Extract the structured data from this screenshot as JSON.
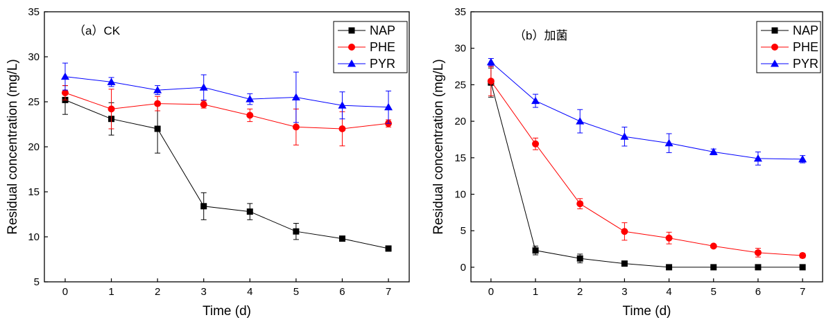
{
  "chart_data": [
    {
      "type": "line",
      "panel_label": "（a）CK",
      "xlabel": "Time (d)",
      "ylabel": "Residual concentration (mg/L)",
      "xlim": [
        -0.45,
        7.45
      ],
      "ylim": [
        5,
        35
      ],
      "x_ticks": [
        0,
        1,
        2,
        3,
        4,
        5,
        6,
        7
      ],
      "y_ticks": [
        5,
        10,
        15,
        20,
        25,
        30,
        35
      ],
      "x": [
        0,
        1,
        2,
        3,
        4,
        5,
        6,
        7
      ],
      "legend_position": "top-right",
      "series": [
        {
          "name": "NAP",
          "color": "#000000",
          "marker": "square",
          "values": [
            25.2,
            23.1,
            22.0,
            13.4,
            12.8,
            10.6,
            9.8,
            8.7
          ],
          "errors": [
            1.6,
            1.8,
            2.7,
            1.5,
            0.9,
            0.9,
            0.2,
            0.3
          ]
        },
        {
          "name": "PHE",
          "color": "#ff0000",
          "marker": "circle",
          "values": [
            26.0,
            24.2,
            24.8,
            24.7,
            23.5,
            22.2,
            22.0,
            22.6
          ],
          "errors": [
            0.8,
            2.2,
            0.8,
            0.4,
            0.7,
            2.0,
            1.9,
            0.4
          ]
        },
        {
          "name": "PYR",
          "color": "#0000ff",
          "marker": "triangle",
          "values": [
            27.8,
            27.2,
            26.3,
            26.6,
            25.3,
            25.5,
            24.6,
            24.4
          ],
          "errors": [
            1.5,
            0.5,
            0.5,
            1.4,
            0.6,
            2.8,
            1.5,
            1.8
          ]
        }
      ]
    },
    {
      "type": "line",
      "panel_label": "（b）加菌",
      "xlabel": "Time (d)",
      "ylabel": "Residual concentration (mg/L)",
      "xlim": [
        -0.45,
        7.45
      ],
      "ylim": [
        -2,
        35
      ],
      "x_ticks": [
        0,
        1,
        2,
        3,
        4,
        5,
        6,
        7
      ],
      "y_ticks": [
        0,
        5,
        10,
        15,
        20,
        25,
        30,
        35
      ],
      "x": [
        0,
        1,
        2,
        3,
        4,
        5,
        6,
        7
      ],
      "legend_position": "top-right",
      "series": [
        {
          "name": "NAP",
          "color": "#000000",
          "marker": "square",
          "values": [
            25.3,
            2.3,
            1.2,
            0.5,
            0.0,
            0.0,
            0.0,
            0.0
          ],
          "errors": [
            2.0,
            0.6,
            0.6,
            0.2,
            0.1,
            0.1,
            0.1,
            0.1
          ]
        },
        {
          "name": "PHE",
          "color": "#ff0000",
          "marker": "circle",
          "values": [
            25.5,
            16.9,
            8.7,
            4.9,
            4.0,
            2.9,
            2.0,
            1.6
          ],
          "errors": [
            2.0,
            0.8,
            0.7,
            1.2,
            0.8,
            0.2,
            0.6,
            0.3
          ]
        },
        {
          "name": "PYR",
          "color": "#0000ff",
          "marker": "triangle",
          "values": [
            28.1,
            22.8,
            20.0,
            17.9,
            17.0,
            15.8,
            14.9,
            14.8
          ],
          "errors": [
            0.5,
            0.9,
            1.6,
            1.3,
            1.3,
            0.4,
            0.9,
            0.5
          ]
        }
      ]
    }
  ]
}
